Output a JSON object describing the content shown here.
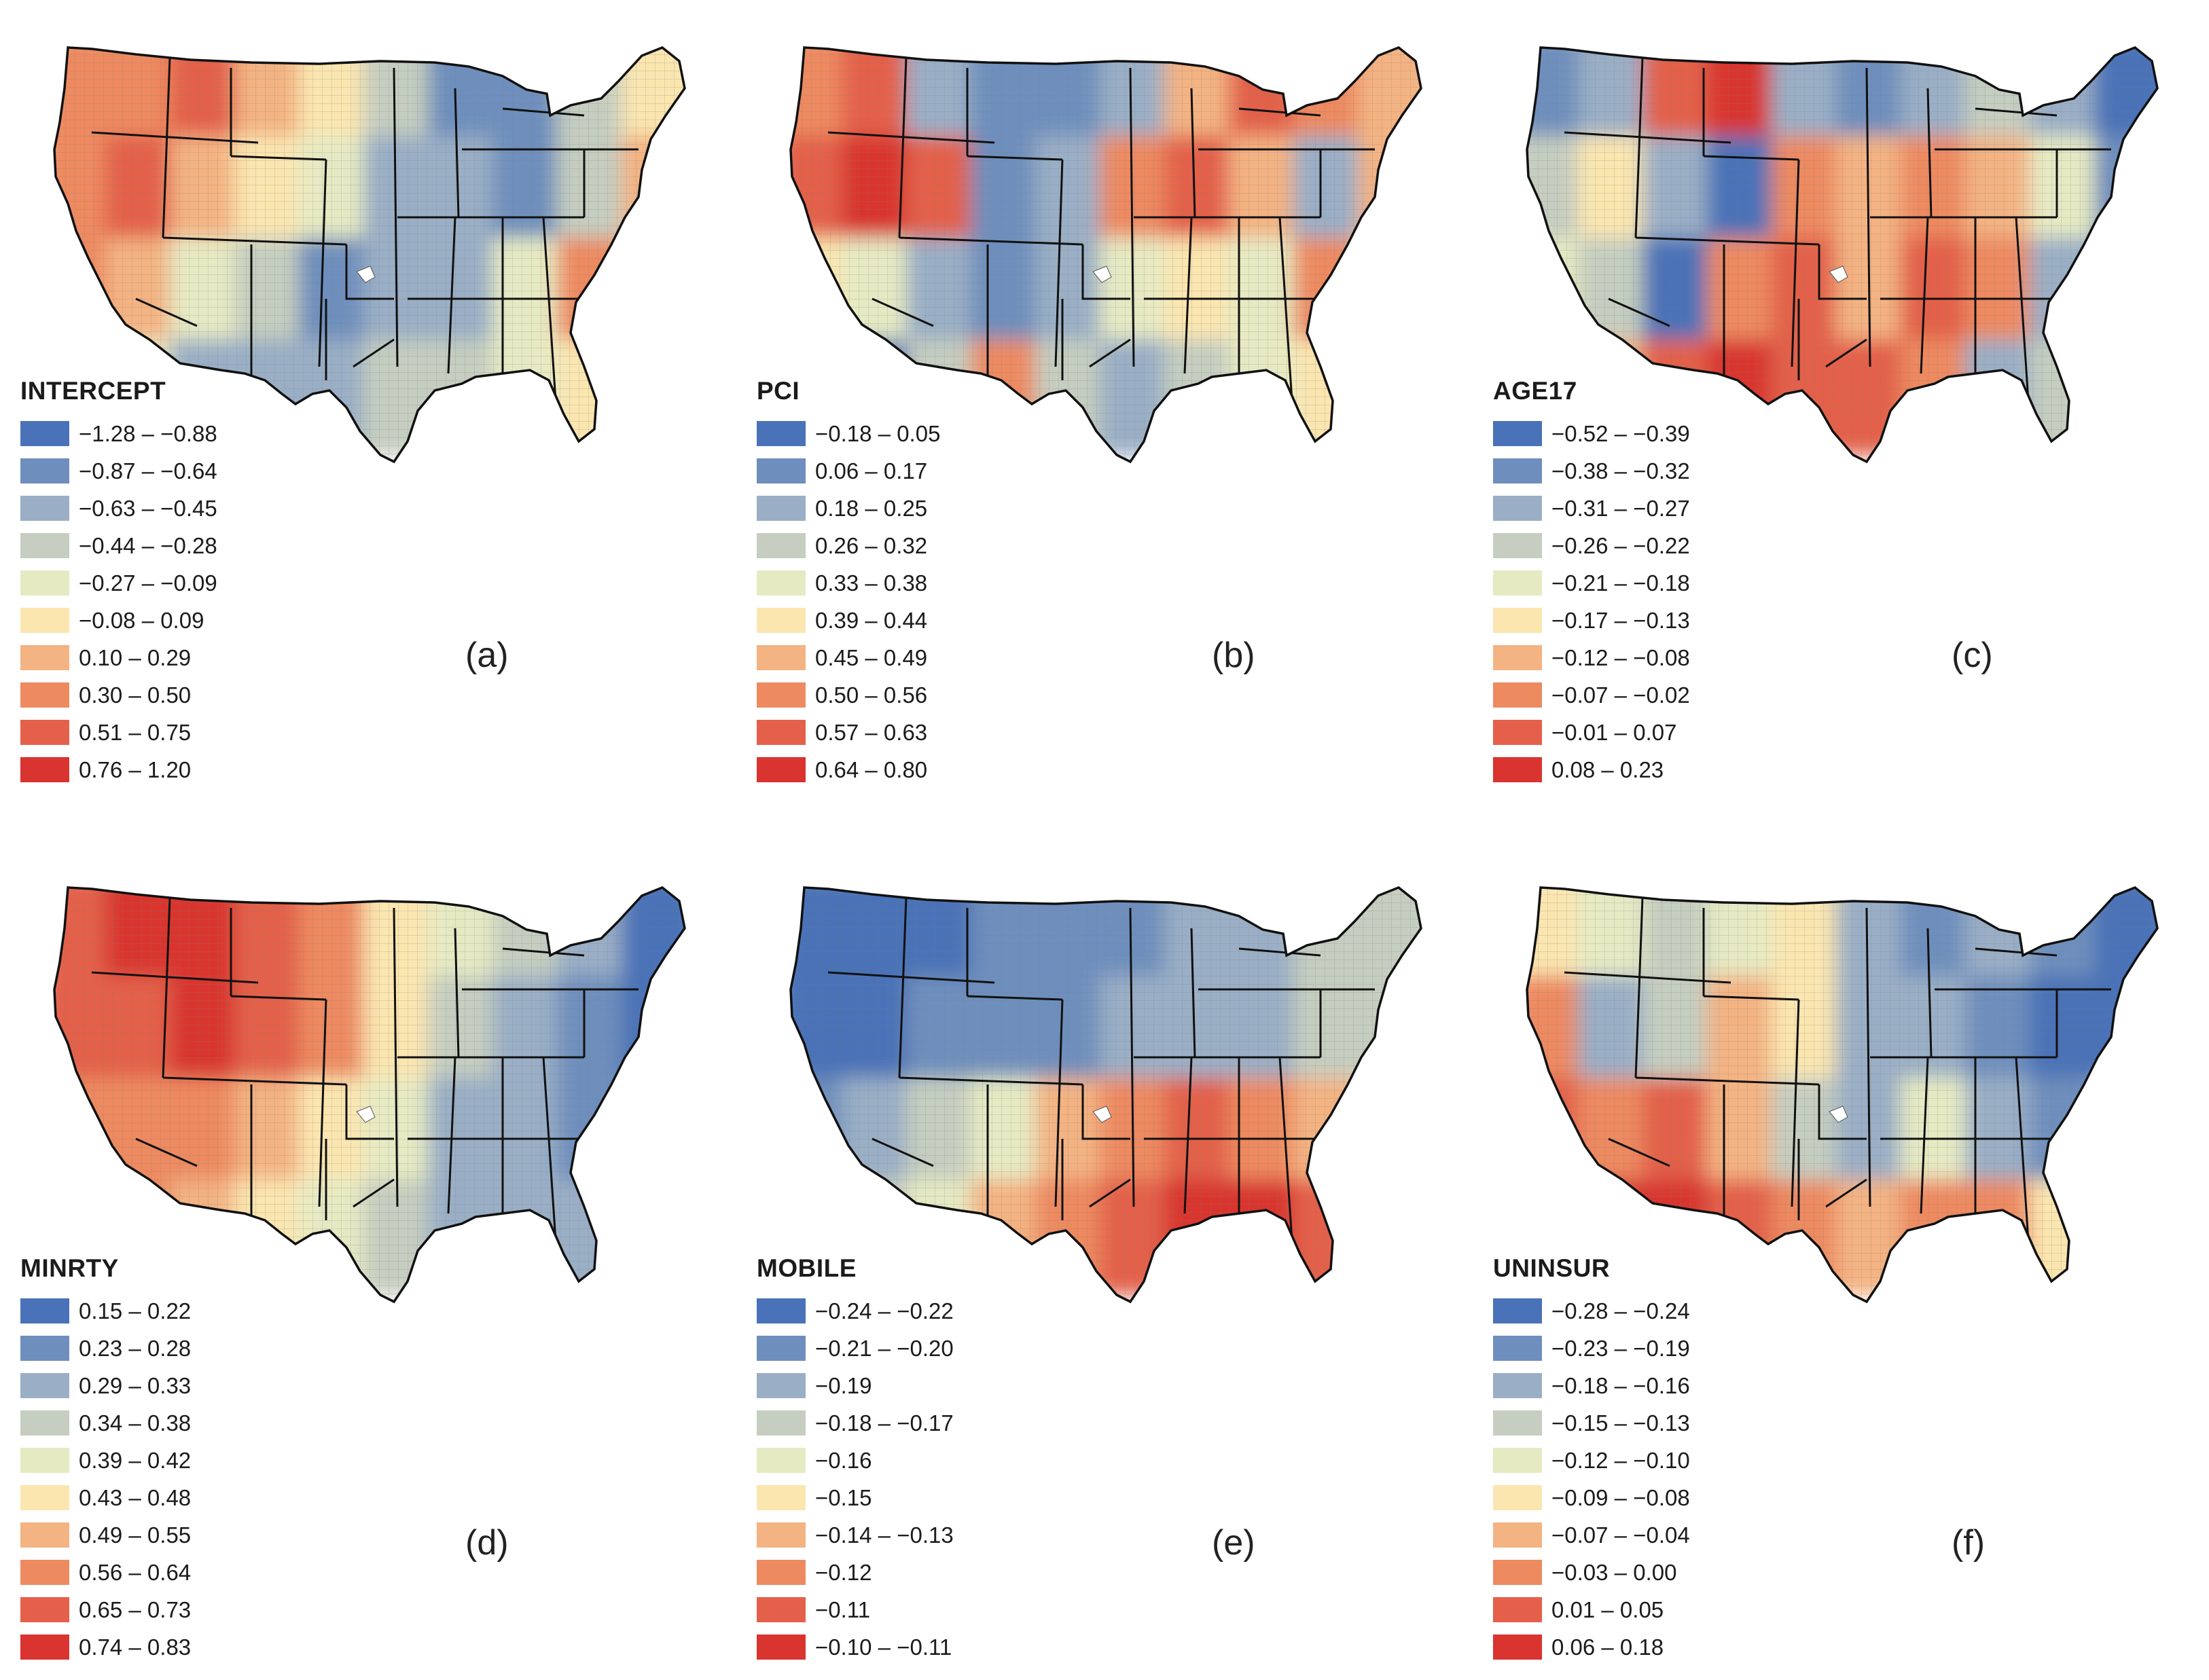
{
  "palette": [
    "#4a72b8",
    "#6e8fbd",
    "#9aafc6",
    "#c5cec0",
    "#e6eac3",
    "#fbe6b0",
    "#f4b382",
    "#ee8a60",
    "#e4604a",
    "#d9342f"
  ],
  "panels": [
    {
      "id": "a",
      "label": "(a)",
      "variable": "INTERCEPT",
      "classes": [
        "−1.28 – −0.88",
        "−0.87 – −0.64",
        "−0.63 – −0.45",
        "−0.44 – −0.28",
        "−0.27 – −0.09",
        "−0.08 – 0.09",
        "0.10 – 0.29",
        "0.30 – 0.50",
        "0.51 – 0.75",
        "0.76 – 1.20"
      ],
      "regions": [
        7,
        7,
        8,
        6,
        5,
        3,
        1,
        1,
        3,
        5,
        7,
        8,
        6,
        5,
        4,
        2,
        2,
        1,
        3,
        6,
        7,
        6,
        4,
        3,
        1,
        2,
        2,
        4,
        7,
        6,
        5,
        4,
        2,
        2,
        2,
        3,
        3,
        4,
        5,
        6
      ]
    },
    {
      "id": "b",
      "label": "(b)",
      "variable": "PCI",
      "classes": [
        "−0.18 – 0.05",
        "0.06 – 0.17",
        "0.18 – 0.25",
        "0.26 – 0.32",
        "0.33 – 0.38",
        "0.39 – 0.44",
        "0.45 – 0.49",
        "0.50 – 0.56",
        "0.57 – 0.63",
        "0.64 – 0.80"
      ],
      "regions": [
        7,
        8,
        2,
        1,
        1,
        2,
        6,
        8,
        7,
        6,
        8,
        9,
        8,
        1,
        2,
        7,
        8,
        6,
        2,
        6,
        5,
        4,
        2,
        1,
        2,
        4,
        5,
        4,
        7,
        5,
        1,
        0,
        3,
        7,
        3,
        2,
        3,
        4,
        5,
        6
      ]
    },
    {
      "id": "c",
      "label": "(c)",
      "variable": "AGE17",
      "classes": [
        "−0.52 – −0.39",
        "−0.38 – −0.32",
        "−0.31 – −0.27",
        "−0.26 – −0.22",
        "−0.21 – −0.18",
        "−0.17 – −0.13",
        "−0.12 – −0.08",
        "−0.07 – −0.02",
        "−0.01 – 0.07",
        "0.08 – 0.23"
      ],
      "regions": [
        1,
        2,
        8,
        9,
        2,
        1,
        2,
        3,
        2,
        0,
        3,
        5,
        2,
        0,
        7,
        6,
        7,
        6,
        4,
        1,
        4,
        3,
        0,
        7,
        8,
        6,
        8,
        7,
        2,
        1,
        5,
        6,
        8,
        9,
        8,
        8,
        7,
        2,
        3,
        0
      ]
    },
    {
      "id": "d",
      "label": "(d)",
      "variable": "MINRTY",
      "classes": [
        "0.15 – 0.22",
        "0.23 – 0.28",
        "0.29 – 0.33",
        "0.34 – 0.38",
        "0.39 – 0.42",
        "0.43 – 0.48",
        "0.49 – 0.55",
        "0.56 – 0.64",
        "0.65 – 0.73",
        "0.74 – 0.83"
      ],
      "regions": [
        8,
        9,
        9,
        8,
        7,
        5,
        4,
        3,
        2,
        0,
        8,
        8,
        9,
        8,
        7,
        5,
        3,
        2,
        1,
        0,
        7,
        7,
        7,
        6,
        5,
        4,
        2,
        2,
        1,
        1,
        7,
        7,
        6,
        5,
        4,
        3,
        2,
        2,
        2,
        3
      ]
    },
    {
      "id": "e",
      "label": "(e)",
      "variable": "MOBILE",
      "classes": [
        "−0.24 – −0.22",
        "−0.21 – −0.20",
        "−0.19",
        "−0.18 – −0.17",
        "−0.16",
        "−0.15",
        "−0.14 – −0.13",
        "−0.12",
        "−0.11",
        "−0.10 – −0.11"
      ],
      "regions": [
        0,
        0,
        0,
        1,
        1,
        1,
        2,
        2,
        3,
        3,
        0,
        0,
        1,
        1,
        1,
        2,
        2,
        2,
        3,
        3,
        1,
        2,
        3,
        4,
        6,
        7,
        8,
        7,
        6,
        5,
        2,
        3,
        4,
        6,
        7,
        8,
        9,
        9,
        8,
        7
      ]
    },
    {
      "id": "f",
      "label": "(f)",
      "variable": "UNINSUR",
      "classes": [
        "−0.28 – −0.24",
        "−0.23 – −0.19",
        "−0.18 – −0.16",
        "−0.15 – −0.13",
        "−0.12 – −0.10",
        "−0.09 – −0.08",
        "−0.07 – −0.04",
        "−0.03 – 0.00",
        "0.01 – 0.05",
        "0.06 – 0.18"
      ],
      "regions": [
        5,
        4,
        3,
        4,
        5,
        2,
        1,
        2,
        1,
        0,
        7,
        2,
        3,
        6,
        5,
        2,
        2,
        1,
        0,
        0,
        8,
        7,
        8,
        6,
        3,
        2,
        4,
        2,
        1,
        2,
        8,
        9,
        9,
        8,
        7,
        6,
        7,
        7,
        5,
        5
      ]
    }
  ]
}
